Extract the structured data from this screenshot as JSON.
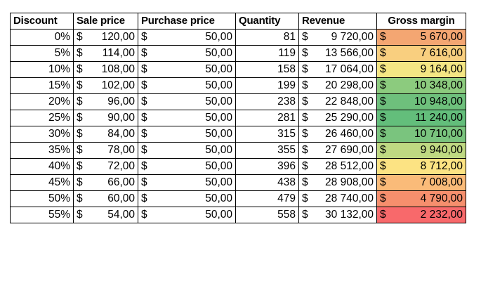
{
  "headers": {
    "discount": "Discount",
    "sale_price": "Sale price",
    "purchase_price": "Purchase price",
    "quantity": "Quantity",
    "revenue": "Revenue",
    "gross_margin": "Gross margin"
  },
  "currency_symbol": "$",
  "rows": [
    {
      "discount": "0%",
      "sale_price": "120,00",
      "purchase_price": "50,00",
      "quantity": "81",
      "revenue": "9 720,00",
      "gross_margin": "5 670,00",
      "gm_color": "#F4A672"
    },
    {
      "discount": "5%",
      "sale_price": "114,00",
      "purchase_price": "50,00",
      "quantity": "119",
      "revenue": "13 566,00",
      "gross_margin": "7 616,00",
      "gm_color": "#F9CF7F"
    },
    {
      "discount": "10%",
      "sale_price": "108,00",
      "purchase_price": "50,00",
      "quantity": "158",
      "revenue": "17 064,00",
      "gross_margin": "9 164,00",
      "gm_color": "#F4E684"
    },
    {
      "discount": "15%",
      "sale_price": "102,00",
      "purchase_price": "50,00",
      "quantity": "199",
      "revenue": "20 298,00",
      "gross_margin": "10 348,00",
      "gm_color": "#8CCB7E"
    },
    {
      "discount": "20%",
      "sale_price": "96,00",
      "purchase_price": "50,00",
      "quantity": "238",
      "revenue": "22 848,00",
      "gross_margin": "10 948,00",
      "gm_color": "#6EC07C"
    },
    {
      "discount": "25%",
      "sale_price": "90,00",
      "purchase_price": "50,00",
      "quantity": "281",
      "revenue": "25 290,00",
      "gross_margin": "11 240,00",
      "gm_color": "#63BE7B"
    },
    {
      "discount": "30%",
      "sale_price": "84,00",
      "purchase_price": "50,00",
      "quantity": "315",
      "revenue": "26 460,00",
      "gross_margin": "10 710,00",
      "gm_color": "#7AC47E"
    },
    {
      "discount": "35%",
      "sale_price": "78,00",
      "purchase_price": "50,00",
      "quantity": "355",
      "revenue": "27 690,00",
      "gross_margin": "9 940,00",
      "gm_color": "#BFD982"
    },
    {
      "discount": "40%",
      "sale_price": "72,00",
      "purchase_price": "50,00",
      "quantity": "396",
      "revenue": "28 512,00",
      "gross_margin": "8 712,00",
      "gm_color": "#FCE383"
    },
    {
      "discount": "45%",
      "sale_price": "66,00",
      "purchase_price": "50,00",
      "quantity": "438",
      "revenue": "28 908,00",
      "gross_margin": "7 008,00",
      "gm_color": "#FABB79"
    },
    {
      "discount": "50%",
      "sale_price": "60,00",
      "purchase_price": "50,00",
      "quantity": "479",
      "revenue": "28 740,00",
      "gross_margin": "4 790,00",
      "gm_color": "#F68F6D"
    },
    {
      "discount": "55%",
      "sale_price": "54,00",
      "purchase_price": "50,00",
      "quantity": "558",
      "revenue": "30 132,00",
      "gross_margin": "2 232,00",
      "gm_color": "#F8696B"
    }
  ]
}
